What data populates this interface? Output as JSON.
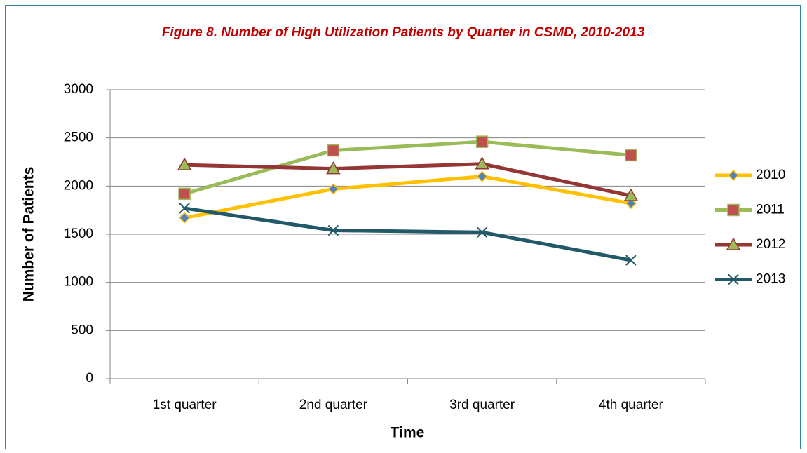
{
  "chart_data": {
    "type": "line",
    "title": "Figure 8. Number of High Utilization Patients by Quarter in CSMD, 2010-2013",
    "x_label": "Time",
    "y_label": "Number of Patients",
    "categories": [
      "1st quarter",
      "2nd quarter",
      "3rd quarter",
      "4th quarter"
    ],
    "series": [
      {
        "name": "2010",
        "color": "#ffc000",
        "marker": "diamond",
        "marker_color": "#4f81bd",
        "values": [
          1670,
          1970,
          2100,
          1820
        ]
      },
      {
        "name": "2011",
        "color": "#9bbb59",
        "marker": "square",
        "marker_color": "#c0504d",
        "values": [
          1920,
          2370,
          2460,
          2320
        ]
      },
      {
        "name": "2012",
        "color": "#943634",
        "marker": "triangle",
        "marker_color": "#9bbb59",
        "values": [
          2220,
          2180,
          2230,
          1900
        ]
      },
      {
        "name": "2013",
        "color": "#215968",
        "marker": "x",
        "marker_color": "#215968",
        "values": [
          1770,
          1540,
          1520,
          1230
        ]
      }
    ],
    "ylim": [
      0,
      3000
    ],
    "yticks": [
      0,
      500,
      1000,
      1500,
      2000,
      2500,
      3000
    ],
    "grid": true,
    "legend": "right"
  }
}
